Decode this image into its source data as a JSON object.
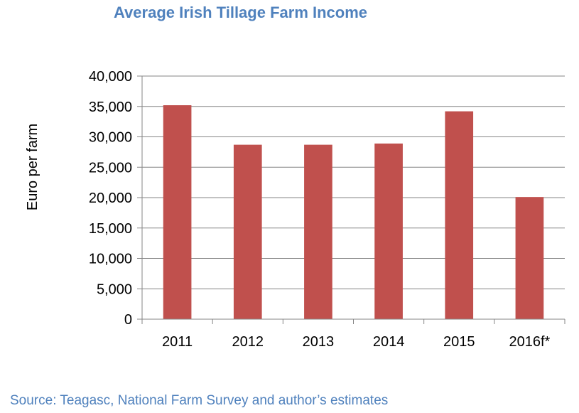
{
  "chart_data": {
    "type": "bar",
    "title": "Average Irish Tillage Farm Income",
    "xlabel": "",
    "ylabel": "Euro per farm",
    "categories": [
      "2011",
      "2012",
      "2013",
      "2014",
      "2015",
      "2016f*"
    ],
    "values": [
      35200,
      28700,
      28700,
      28900,
      34200,
      20100
    ],
    "ylim": [
      0,
      40000
    ],
    "yticks": [
      0,
      5000,
      10000,
      15000,
      20000,
      25000,
      30000,
      35000,
      40000
    ],
    "ytick_labels": [
      "0",
      "5,000",
      "10,000",
      "15,000",
      "20,000",
      "25,000",
      "30,000",
      "35,000",
      "40,000"
    ],
    "grid": true,
    "legend": "none",
    "bar_color": "#c0504d",
    "title_color": "#4f81bd"
  },
  "footer": {
    "source": "Source: Teagasc, National Farm Survey and author’s estimates"
  }
}
